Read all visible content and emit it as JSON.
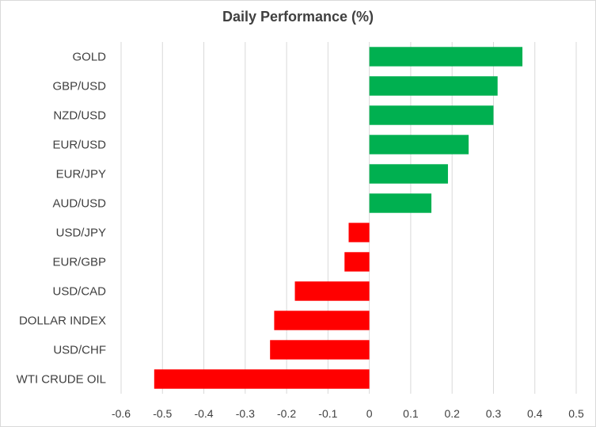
{
  "chart_data": {
    "type": "bar",
    "orientation": "horizontal",
    "title": "Daily Performance (%)",
    "xlabel": "",
    "ylabel": "",
    "categories": [
      "GOLD",
      "GBP/USD",
      "NZD/USD",
      "EUR/USD",
      "EUR/JPY",
      "AUD/USD",
      "USD/JPY",
      "EUR/GBP",
      "USD/CAD",
      "DOLLAR INDEX",
      "USD/CHF",
      "WTI CRUDE OIL"
    ],
    "values": [
      0.37,
      0.31,
      0.3,
      0.24,
      0.19,
      0.15,
      -0.05,
      -0.06,
      -0.18,
      -0.23,
      -0.24,
      -0.52
    ],
    "xlim": [
      -0.6,
      0.5
    ],
    "xticks": [
      "-0.6",
      "-0.5",
      "-0.4",
      "-0.3",
      "-0.2",
      "-0.1",
      "0",
      "0.1",
      "0.2",
      "0.3",
      "0.4",
      "0.5"
    ],
    "grid": "vertical",
    "legend": "none",
    "colors": {
      "positive": "#00b050",
      "negative": "#ff0000",
      "grid": "#d9d9d9"
    }
  }
}
